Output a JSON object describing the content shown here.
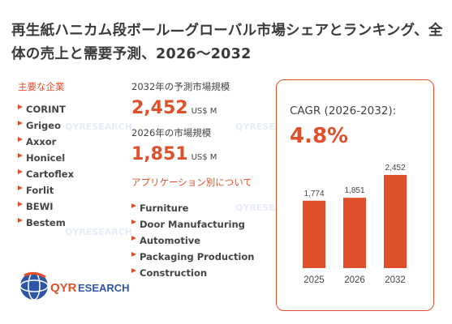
{
  "title": "再生紙ハニカム段ボール—グローバル市場シェアとランキング、全体の売上と需要予測、2026〜2032",
  "companies_heading": "主要な企業",
  "companies": [
    "CORINT",
    "Grigeo",
    "Axxor",
    "Honicel",
    "Cartoflex",
    "Forlit",
    "BEWI",
    "Bestem"
  ],
  "forecast_2032": {
    "label": "2032年の予測市場規模",
    "value": "2,452",
    "unit": "US$ M"
  },
  "size_2026": {
    "label": "2026年の市場規模",
    "value": "1,851",
    "unit": "US$ M"
  },
  "applications_heading": "アプリケーション別について",
  "applications": [
    "Furniture",
    "Door Manufacturing",
    "Automotive",
    "Packaging Production",
    "Construction"
  ],
  "cagr": {
    "label": "CAGR (2026-2032):",
    "value": "4.8%"
  },
  "logo": {
    "text_accent": "QYR",
    "text_rest": "ESEARCH"
  },
  "colors": {
    "accent": "#e0502a",
    "text": "#444444",
    "logo_blue": "#2f56a6"
  },
  "chart_data": {
    "type": "bar",
    "categories": [
      "2025",
      "2026",
      "2032"
    ],
    "values": [
      1774,
      1851,
      2452
    ],
    "data_labels": [
      "1,774",
      "1,851",
      "2,452"
    ],
    "title": "",
    "xlabel": "",
    "ylabel": "",
    "ylim": [
      0,
      2600
    ]
  }
}
